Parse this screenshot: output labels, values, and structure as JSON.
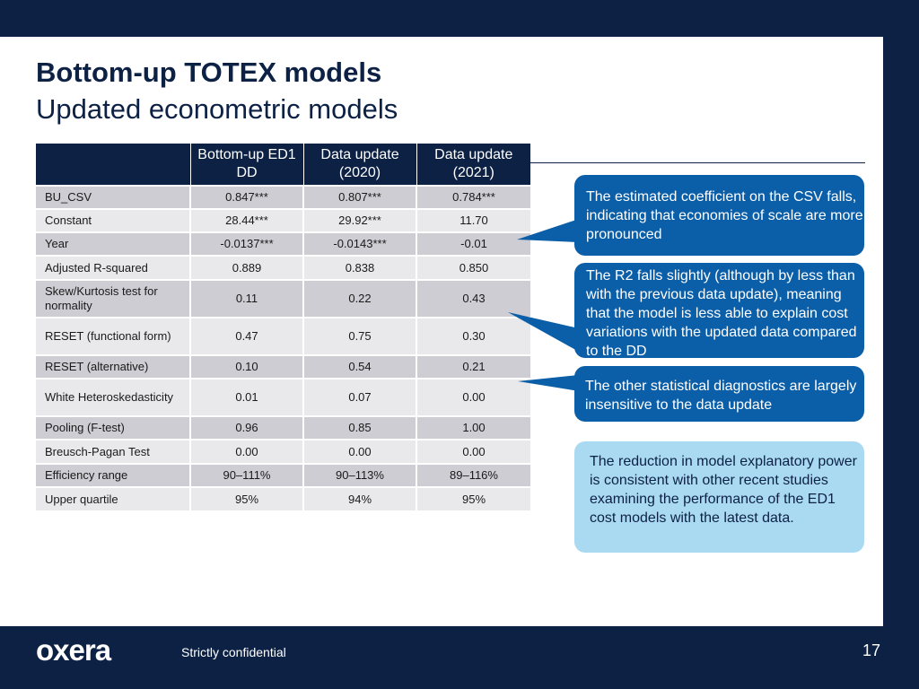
{
  "title": "Bottom-up TOTEX models",
  "subtitle": "Updated econometric models",
  "table": {
    "headers": [
      "",
      "Bottom-up ED1 DD",
      "Data update (2020)",
      "Data update (2021)"
    ],
    "rows": [
      [
        "BU_CSV",
        "0.847***",
        "0.807***",
        "0.784***"
      ],
      [
        "Constant",
        "28.44***",
        "29.92***",
        "11.70"
      ],
      [
        "Year",
        "-0.0137***",
        "-0.0143***",
        "-0.01"
      ],
      [
        "Adjusted R-squared",
        "0.889",
        "0.838",
        "0.850"
      ],
      [
        "Skew/Kurtosis test for normality",
        "0.11",
        "0.22",
        "0.43"
      ],
      [
        "RESET (functional form)",
        "0.47",
        "0.75",
        "0.30"
      ],
      [
        "RESET (alternative)",
        "0.10",
        "0.54",
        "0.21"
      ],
      [
        "White Heteroskedasticity",
        "0.01",
        "0.07",
        "0.00"
      ],
      [
        "Pooling (F-test)",
        "0.96",
        "0.85",
        "1.00"
      ],
      [
        "Breusch-Pagan Test",
        "0.00",
        "0.00",
        "0.00"
      ],
      [
        "Efficiency range",
        "90–111%",
        "90–113%",
        "89–116%"
      ],
      [
        "Upper quartile",
        "95%",
        "94%",
        "95%"
      ]
    ]
  },
  "callouts": [
    "The estimated coefficient on the CSV falls, indicating that economies of scale are more pronounced",
    "The R2 falls slightly (although by less than with the previous data update), meaning that the model is less able to explain cost variations with the updated data compared to the DD",
    "The other statistical diagnostics are largely insensitive to the data update",
    "The reduction in model explanatory power is consistent with other recent studies examining the performance of the ED1 cost models with the latest data."
  ],
  "footer": {
    "logo": "oxera",
    "confidentiality": "Strictly confidential",
    "page_number": "17"
  },
  "colors": {
    "navy": "#0d2144",
    "callout_dark": "#0b5ea8",
    "callout_light": "#a9daf2",
    "row_dark": "#cdcdd3",
    "row_light": "#e9e9ec"
  }
}
